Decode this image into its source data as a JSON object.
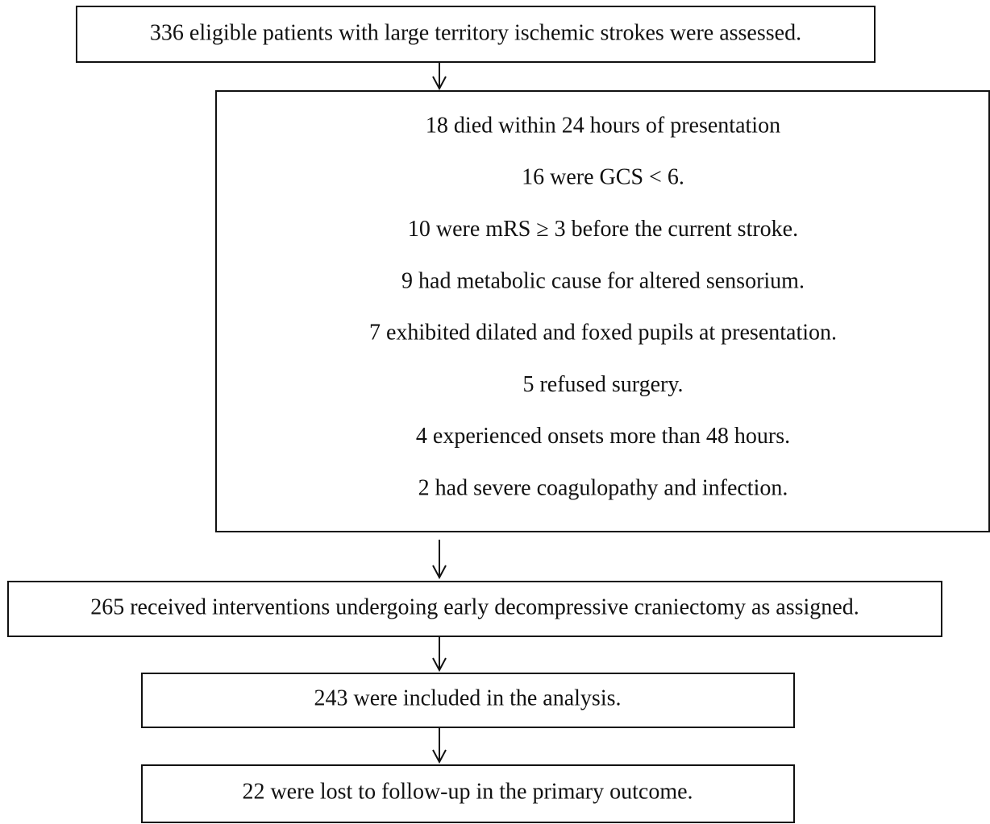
{
  "nodes": [
    {
      "label": "336 eligible patients with large territory ischemic strokes were assessed."
    },
    {
      "lines": [
        "18 died within 24 hours of presentation",
        "16 were GCS < 6.",
        "10 were mRS ≥ 3 before the current stroke.",
        "9 had metabolic cause for altered sensorium.",
        "7 exhibited dilated and foxed pupils at presentation.",
        "5 refused surgery.",
        "4 experienced onsets more than 48 hours.",
        "2 had severe coagulopathy and infection."
      ]
    },
    {
      "label": "265 received interventions undergoing early decompressive craniectomy as assigned."
    },
    {
      "label": "243 were included in the analysis."
    },
    {
      "label": "22 were lost to follow-up in the primary outcome."
    }
  ]
}
